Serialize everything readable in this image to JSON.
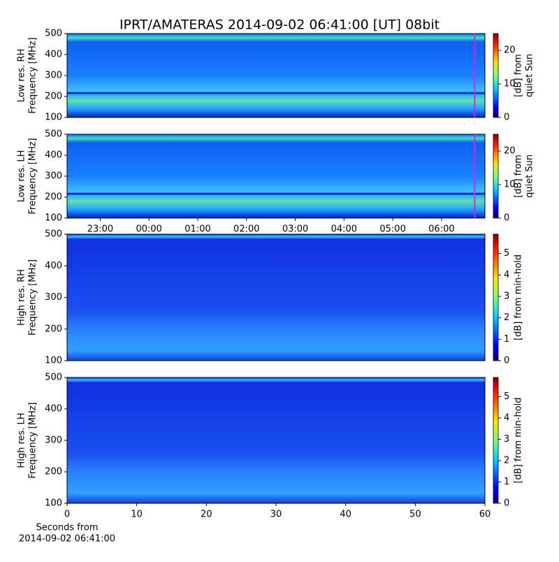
{
  "chart_data": [
    {
      "type": "heatmap",
      "title": "IPRT/AMATERAS 2014-09-02 06:41:00 [UT]   08bit",
      "ylabel": [
        "Low res. RH",
        "Frequency [MHz]"
      ],
      "ylim": [
        100,
        500
      ],
      "yticks": [
        100,
        200,
        300,
        400,
        500
      ],
      "xlim": [
        22.32,
        30.89
      ],
      "marker_x": 30.68,
      "marker_color": "#e020e0",
      "colorbar_label": [
        "[dB] from",
        "quiet Sun"
      ],
      "clim": [
        0,
        25
      ],
      "cticks": [
        0,
        10,
        20
      ]
    },
    {
      "type": "heatmap",
      "ylabel": [
        "Low res. LH",
        "Frequency [MHz]"
      ],
      "ylim": [
        100,
        500
      ],
      "yticks": [
        100,
        200,
        300,
        400,
        500
      ],
      "xlim": [
        22.32,
        30.89
      ],
      "marker_x": 30.68,
      "marker_color": "#e020e0",
      "xticks": [
        {
          "value": 23,
          "label": "23:00"
        },
        {
          "value": 24,
          "label": "00:00"
        },
        {
          "value": 25,
          "label": "01:00"
        },
        {
          "value": 26,
          "label": "02:00"
        },
        {
          "value": 27,
          "label": "03:00"
        },
        {
          "value": 28,
          "label": "04:00"
        },
        {
          "value": 29,
          "label": "05:00"
        },
        {
          "value": 30,
          "label": "06:00"
        }
      ],
      "colorbar_label": [
        "[dB] from",
        "quiet Sun"
      ],
      "clim": [
        0,
        25
      ],
      "cticks": [
        0,
        10,
        20
      ]
    },
    {
      "type": "heatmap",
      "ylabel": [
        "High res. RH",
        "Frequency [MHz]"
      ],
      "ylim": [
        100,
        500
      ],
      "yticks": [
        100,
        200,
        300,
        400,
        500
      ],
      "xlim": [
        0,
        60
      ],
      "colorbar_label": [
        "[dB] from min-hold"
      ],
      "clim": [
        0,
        5.9
      ],
      "cticks": [
        0,
        1,
        2,
        3,
        4,
        5
      ]
    },
    {
      "type": "heatmap",
      "ylabel": [
        "High res. LH",
        "Frequency [MHz]"
      ],
      "ylim": [
        100,
        500
      ],
      "yticks": [
        100,
        200,
        300,
        400,
        500
      ],
      "xlim": [
        0,
        60
      ],
      "xticks": [
        0,
        10,
        20,
        30,
        40,
        50,
        60
      ],
      "xlabel": [
        "Seconds from",
        "2014-09-02 06:41:00"
      ],
      "colorbar_label": [
        "[dB] from min-hold"
      ],
      "clim": [
        0,
        5.9
      ],
      "cticks": [
        0,
        1,
        2,
        3,
        4,
        5
      ]
    }
  ]
}
